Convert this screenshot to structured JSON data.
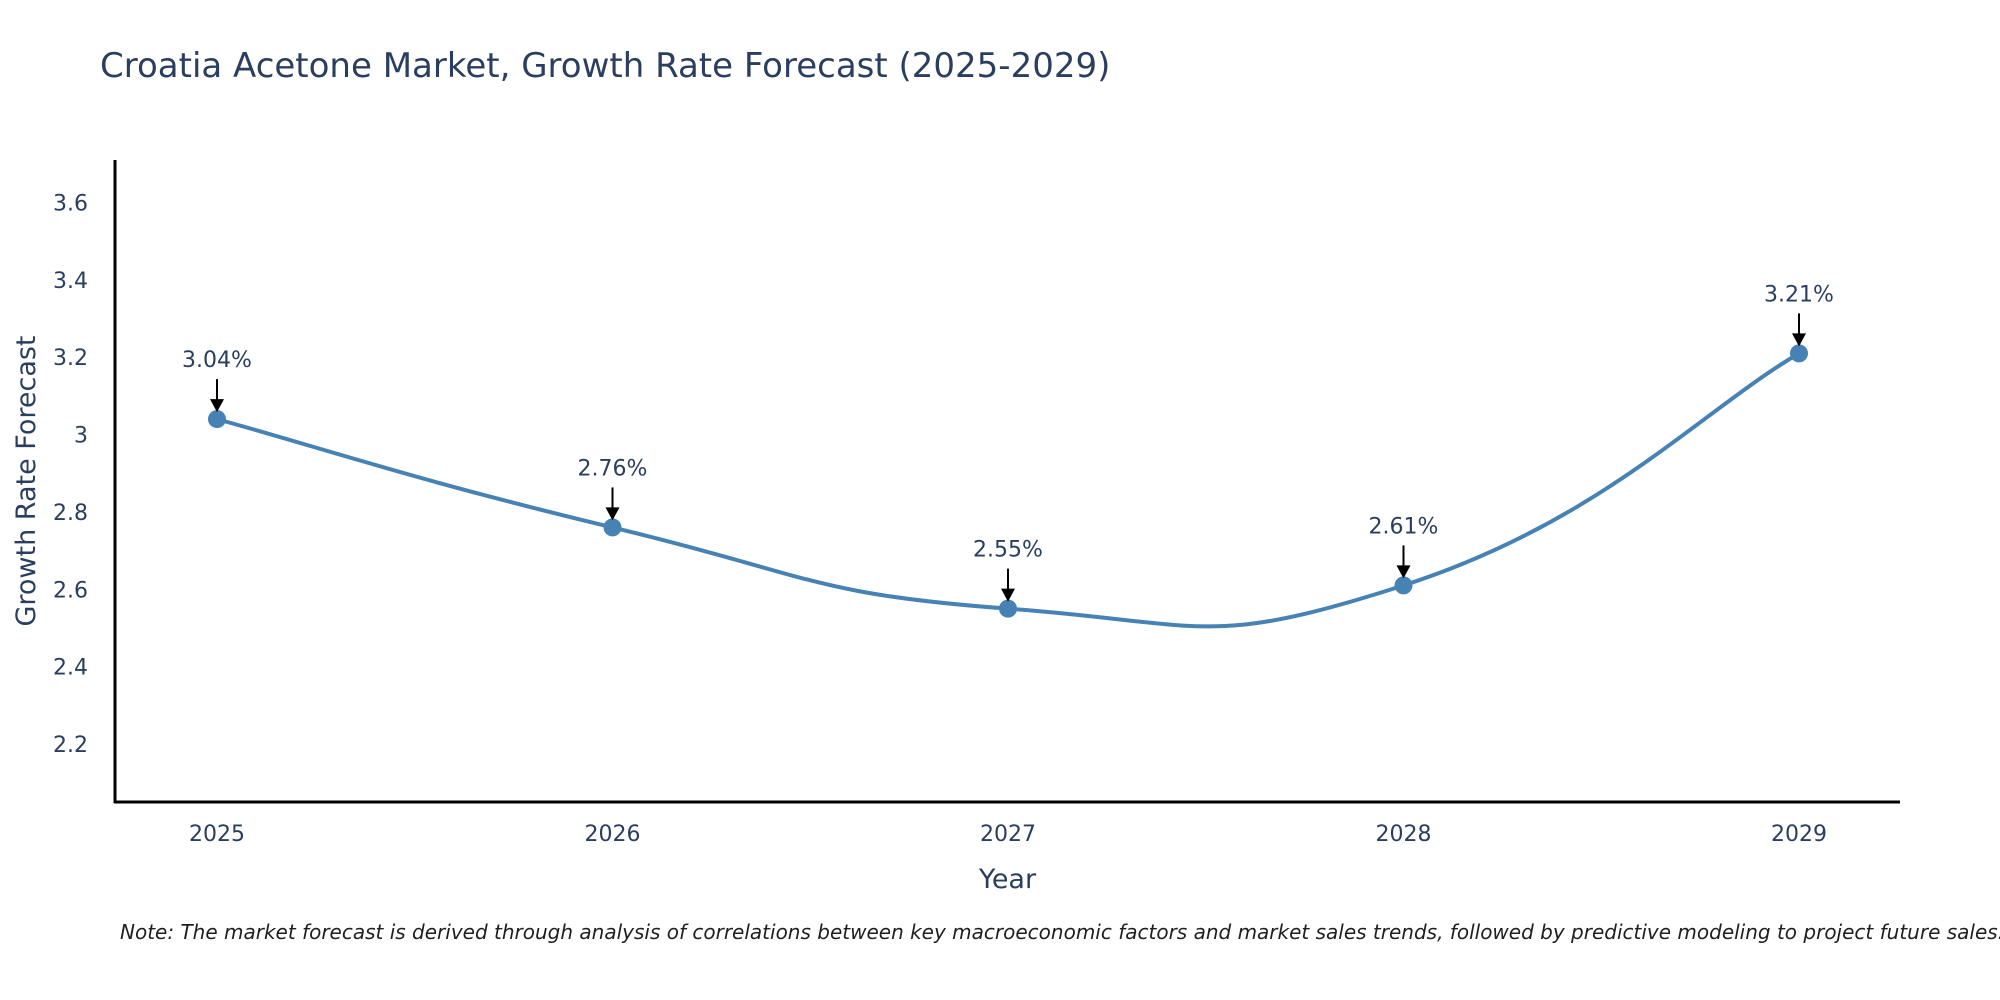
{
  "chart_data": {
    "type": "line",
    "title": "Croatia Acetone Market, Growth Rate Forecast (2025-2029)",
    "xlabel": "Year",
    "ylabel": "Growth Rate Forecast",
    "categories": [
      "2025",
      "2026",
      "2027",
      "2028",
      "2029"
    ],
    "values": [
      3.04,
      2.76,
      2.55,
      2.61,
      3.21
    ],
    "data_labels": [
      "3.04%",
      "2.76%",
      "2.55%",
      "2.61%",
      "3.21%"
    ],
    "yticks": [
      2.2,
      2.4,
      2.6,
      2.8,
      3,
      3.2,
      3.4,
      3.6
    ],
    "ytick_labels": [
      "2.2",
      "2.4",
      "2.6",
      "2.8",
      "3",
      "3.2",
      "3.4",
      "3.6"
    ],
    "ylim": [
      2.05,
      3.71
    ],
    "grid": false,
    "line_shape": "spline",
    "series_color": "#4682b4",
    "axis_color": "#000000",
    "text_color": "#2a3f5f"
  },
  "note": "Note: The market forecast is derived through analysis of correlations between key macroeconomic factors and market sales trends, followed by predictive modeling to project future sales."
}
